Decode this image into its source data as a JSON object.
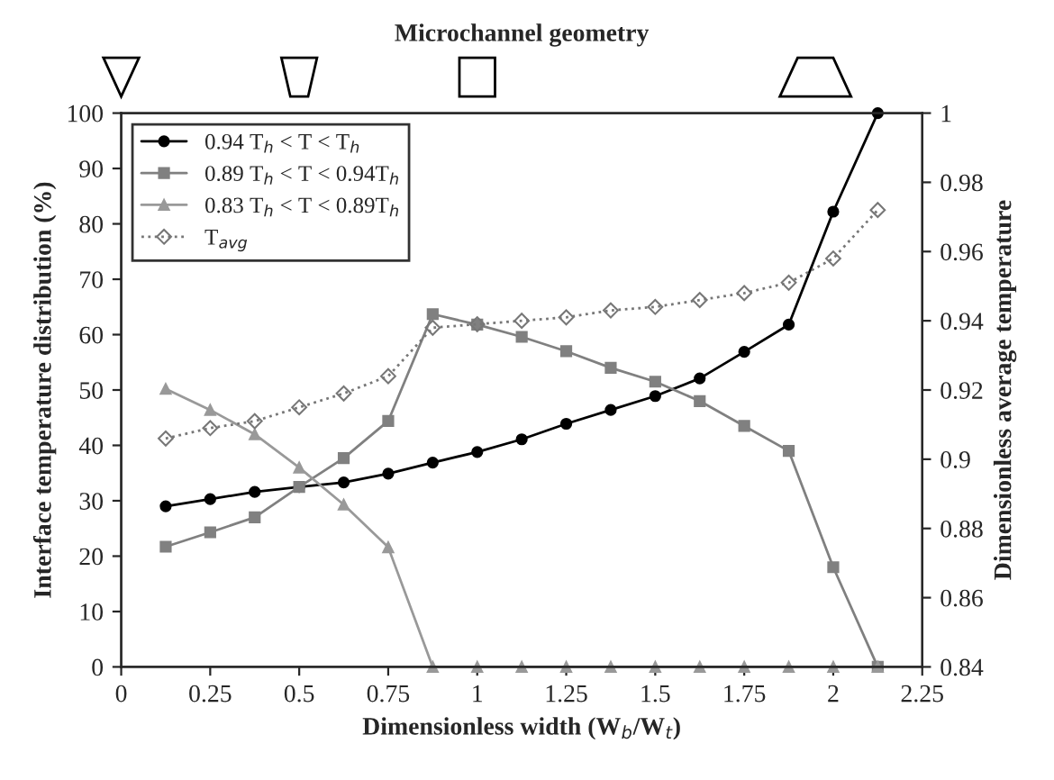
{
  "chart_data": {
    "type": "line",
    "title": "Microchannel geometry",
    "xlabel": "Dimensionless width (W$_{b}$/W$_{t}$)",
    "ylabel": "Interface temperature distribution (%)",
    "y2label": "Dimensionless average temperature",
    "x": [
      0.125,
      0.25,
      0.375,
      0.5,
      0.625,
      0.75,
      0.875,
      1,
      1.125,
      1.25,
      1.375,
      1.5,
      1.625,
      1.75,
      1.875,
      2,
      2.125
    ],
    "series": [
      {
        "name": "0.94 T$_{h}$ < T < T$_{h}$",
        "color": "#000000",
        "marker": "circle",
        "line_style": "solid",
        "values": [
          29,
          30.3,
          31.6,
          32.5,
          33.3,
          34.9,
          36.9,
          38.8,
          41.1,
          43.9,
          46.4,
          48.9,
          52.1,
          56.9,
          61.8,
          82.2,
          100
        ]
      },
      {
        "name": "0.89 T$_{h}$ < T < 0.94T$_{h}$",
        "color": "#808080",
        "marker": "square",
        "line_style": "solid",
        "values": [
          21.7,
          24.3,
          27,
          32.5,
          37.7,
          44.4,
          63.7,
          61.8,
          59.6,
          57,
          54,
          51.5,
          48,
          43.5,
          39,
          18,
          0
        ]
      },
      {
        "name": "0.83 T$_{h}$ < T < 0.89T$_{h}$",
        "color": "#999999",
        "marker": "triangle",
        "line_style": "solid",
        "values": [
          50.2,
          46.4,
          42,
          36,
          29.3,
          21.6,
          0,
          0,
          0,
          0,
          0,
          0,
          0,
          0,
          0,
          0,
          0
        ]
      },
      {
        "name": "T$_{avg}$",
        "color": "#777777",
        "marker": "diamond",
        "line_style": "dotted",
        "axis": "y2",
        "values": [
          0.906,
          0.909,
          0.911,
          0.915,
          0.919,
          0.924,
          0.938,
          0.939,
          0.94,
          0.941,
          0.943,
          0.944,
          0.946,
          0.948,
          0.951,
          0.958,
          0.972
        ]
      }
    ],
    "xlim": [
      0,
      2.25
    ],
    "xticks": [
      0,
      0.25,
      0.5,
      0.75,
      1,
      1.25,
      1.5,
      1.75,
      2,
      2.25
    ],
    "ylim": [
      0,
      100
    ],
    "yticks": [
      0,
      10,
      20,
      30,
      40,
      50,
      60,
      70,
      80,
      90,
      100
    ],
    "y2lim": [
      0.84,
      1
    ],
    "y2ticks": [
      0.84,
      0.86,
      0.88,
      0.9,
      0.92,
      0.94,
      0.96,
      0.98,
      1
    ],
    "grid": false,
    "legend": "top left"
  }
}
